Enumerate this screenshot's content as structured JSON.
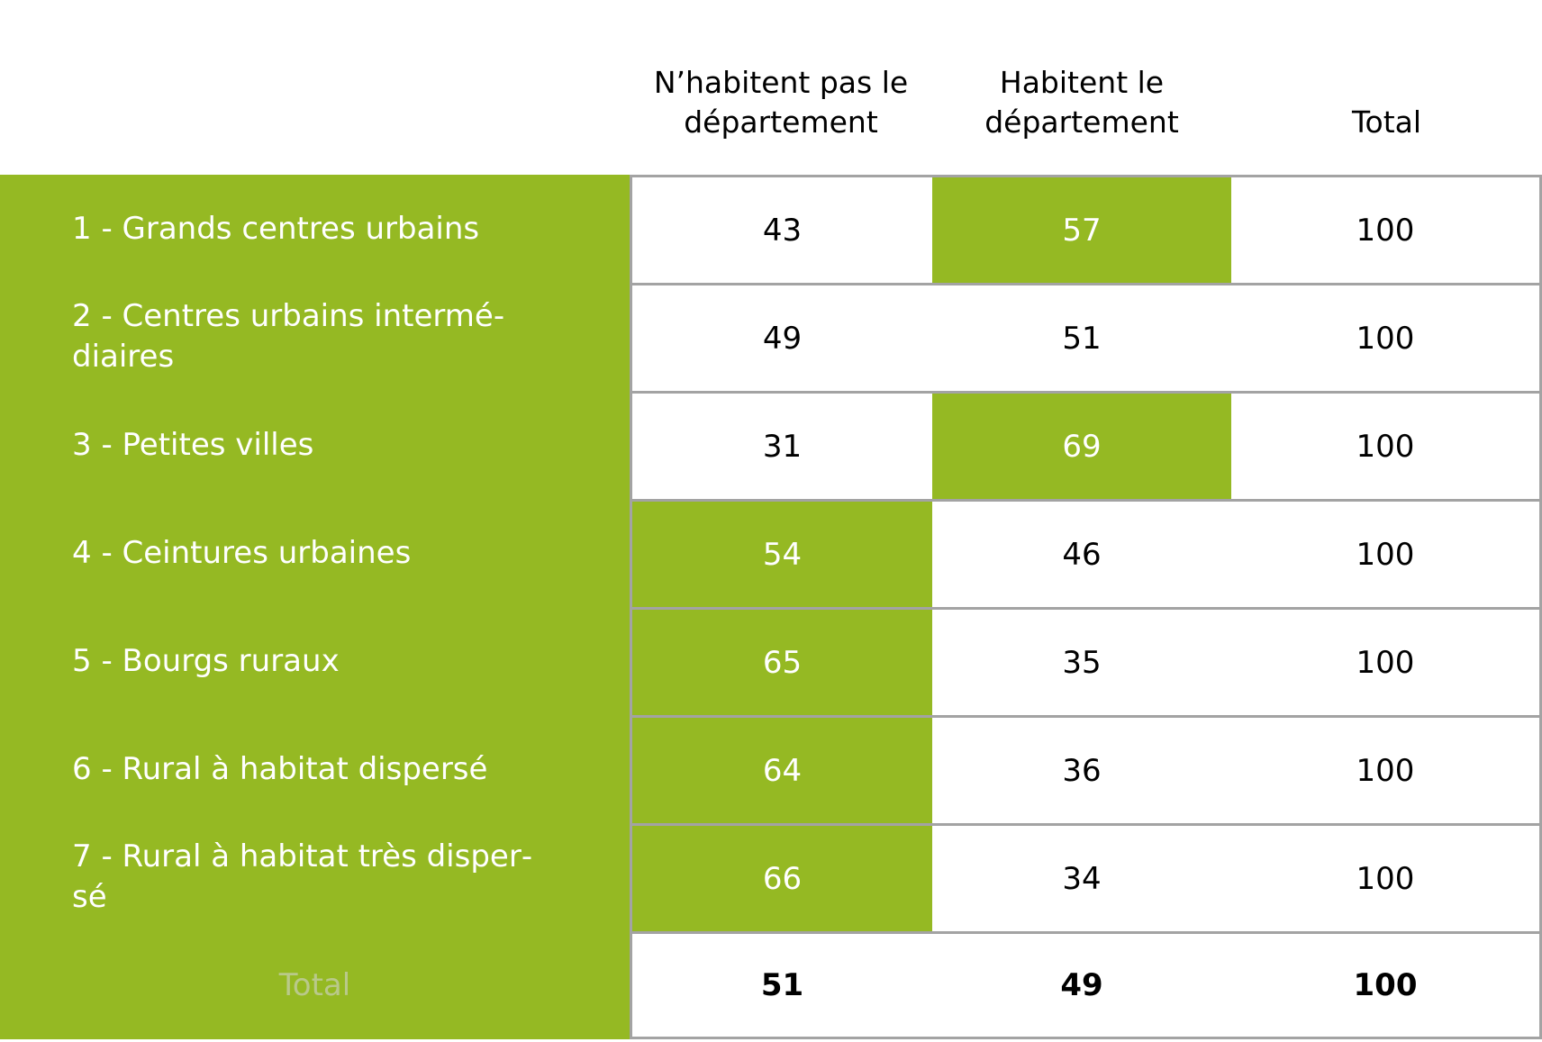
{
  "table": {
    "columns": [
      "N’habitent pas le département",
      "Habitent le département",
      "Total"
    ],
    "rows": [
      {
        "label": "1 - Grands centres urbains",
        "values": [
          43,
          57,
          100
        ]
      },
      {
        "label": "2 - Centres urbains intermé­diaires",
        "values": [
          49,
          51,
          100
        ]
      },
      {
        "label": "3 - Petites villes",
        "values": [
          31,
          69,
          100
        ]
      },
      {
        "label": "4 - Ceintures urbaines",
        "values": [
          54,
          46,
          100
        ]
      },
      {
        "label": "5 - Bourgs ruraux",
        "values": [
          65,
          35,
          100
        ]
      },
      {
        "label": "6 - Rural à habitat dispersé",
        "values": [
          64,
          36,
          100
        ]
      },
      {
        "label": "7 - Rural à habitat très disper­sé",
        "values": [
          66,
          34,
          100
        ]
      }
    ],
    "total": {
      "label": "Total",
      "values": [
        51,
        49,
        100
      ]
    }
  }
}
